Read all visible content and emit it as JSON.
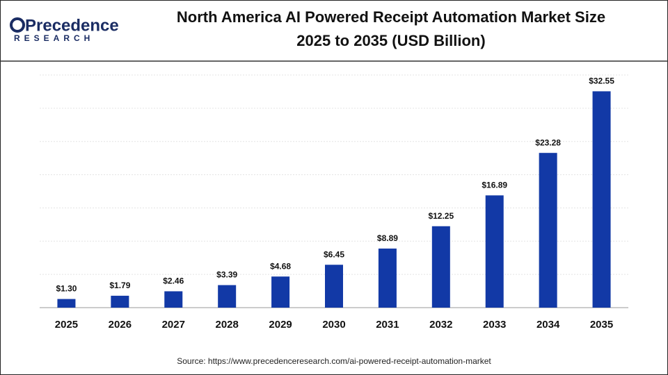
{
  "brand": {
    "name": "Precedence",
    "tagline": "RESEARCH"
  },
  "chart_data": {
    "type": "bar",
    "title": [
      "North America AI Powered Receipt Automation Market Size",
      "2025 to 2035 (USD Billion)"
    ],
    "categories": [
      "2025",
      "2026",
      "2027",
      "2028",
      "2029",
      "2030",
      "2031",
      "2032",
      "2033",
      "2034",
      "2035"
    ],
    "values": [
      1.3,
      1.79,
      2.46,
      3.39,
      4.68,
      6.45,
      8.89,
      12.25,
      16.89,
      23.28,
      32.55
    ],
    "value_labels": [
      "$1.30",
      "$1.79",
      "$2.46",
      "$3.39",
      "$4.68",
      "$6.45",
      "$8.89",
      "$12.25",
      "$16.89",
      "$23.28",
      "$32.55"
    ],
    "color": "#1239a6",
    "ylim": [
      0,
      35
    ],
    "yticks": [
      0,
      5,
      10,
      15,
      20,
      25,
      30,
      35
    ],
    "grid": true,
    "source": "Source: https://www.precedenceresearch.com/ai-powered-receipt-automation-market"
  }
}
